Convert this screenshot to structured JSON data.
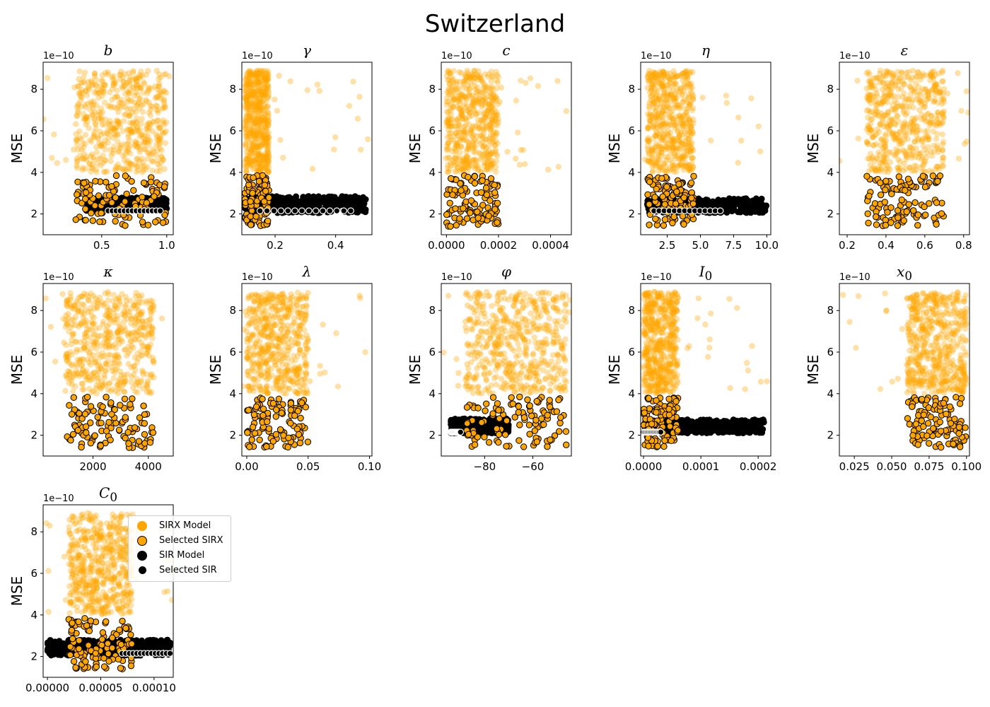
{
  "title": "Switzerland",
  "colors": {
    "sirx": "#FFA500",
    "sir": "#000000",
    "edge": "#000000",
    "sel_sir_edge": "#ffffff"
  },
  "legend": [
    {
      "label": "SIRX Model",
      "kind": "sirx"
    },
    {
      "label": "Selected SIRX",
      "kind": "sel_sirx"
    },
    {
      "label": "SIR Model",
      "kind": "sir"
    },
    {
      "label": "Selected SIR",
      "kind": "sel_sir"
    }
  ],
  "chart_data": [
    {
      "type": "scatter",
      "param": "b",
      "title_html": "<i>b</i>",
      "xlim": [
        0.05,
        1.05
      ],
      "xticks": [
        0.5,
        1.0
      ],
      "xtick_labels": [
        "0.5",
        "1.0"
      ],
      "sirx_x": [
        0.3,
        1.0
      ],
      "sir_x": [
        0.38,
        1.0
      ],
      "sir_y": [
        2.15,
        2.8
      ],
      "sel_sir_x": [
        0.55,
        0.95
      ],
      "ylabel": "MSE"
    },
    {
      "type": "scatter",
      "param": "gamma",
      "title_html": "<i>γ</i>",
      "xlim": [
        0.09,
        0.52
      ],
      "xticks": [
        0.2,
        0.4
      ],
      "xtick_labels": [
        "0.2",
        "0.4"
      ],
      "sirx_x": [
        0.1,
        0.18
      ],
      "sir_x": [
        0.1,
        0.5
      ],
      "sir_y": [
        2.05,
        2.85
      ],
      "sel_sir_x": [
        0.15,
        0.45
      ],
      "ylabel": "MSE"
    },
    {
      "type": "scatter",
      "param": "c",
      "title_html": "<i>c</i>",
      "xlim": [
        -2e-05,
        0.00048
      ],
      "xticks": [
        0.0,
        0.0002,
        0.0004
      ],
      "xtick_labels": [
        "0.0000",
        "0.0002",
        "0.0004"
      ],
      "sirx_x": [
        0.0,
        0.0002
      ],
      "sir_x": null,
      "sir_y": null,
      "sel_sir_x": null,
      "ylabel": "MSE"
    },
    {
      "type": "scatter",
      "param": "eta",
      "title_html": "<i>η</i>",
      "xlim": [
        0.5,
        10.3
      ],
      "xticks": [
        2.5,
        5.0,
        7.5,
        10.0
      ],
      "xtick_labels": [
        "2.5",
        "5.0",
        "7.5",
        "10.0"
      ],
      "sirx_x": [
        1.0,
        4.5
      ],
      "sir_x": [
        1.0,
        10.0
      ],
      "sir_y": [
        2.05,
        2.75
      ],
      "sel_sir_x": [
        1.5,
        6.5
      ],
      "ylabel": "MSE"
    },
    {
      "type": "scatter",
      "param": "epsilon",
      "title_html": "<i>ε</i>",
      "xlim": [
        0.16,
        0.83
      ],
      "xticks": [
        0.2,
        0.4,
        0.6,
        0.8
      ],
      "xtick_labels": [
        "0.2",
        "0.4",
        "0.6",
        "0.8"
      ],
      "sirx_x": [
        0.3,
        0.7
      ],
      "sir_x": null,
      "sir_y": null,
      "sel_sir_x": null,
      "ylabel": "MSE"
    },
    {
      "type": "scatter",
      "param": "kappa",
      "title_html": "<i>κ</i>",
      "xlim": [
        200,
        4900
      ],
      "xticks": [
        2000,
        4000
      ],
      "xtick_labels": [
        "2000",
        "4000"
      ],
      "sirx_x": [
        1000,
        4200
      ],
      "sir_x": null,
      "sir_y": null,
      "sel_sir_x": null,
      "ylabel": "MSE"
    },
    {
      "type": "scatter",
      "param": "lambda",
      "title_html": "<i>λ</i>",
      "xlim": [
        -0.004,
        0.102
      ],
      "xticks": [
        0.0,
        0.05,
        0.1
      ],
      "xtick_labels": [
        "0.00",
        "0.05",
        "0.10"
      ],
      "sirx_x": [
        0.0,
        0.05
      ],
      "sir_x": null,
      "sir_y": null,
      "sel_sir_x": null,
      "ylabel": "MSE"
    },
    {
      "type": "scatter",
      "param": "phi",
      "title_html": "<i>φ</i>",
      "xlim": [
        -98,
        -44
      ],
      "xticks": [
        -80,
        -60
      ],
      "xtick_labels": [
        "−80",
        "−60"
      ],
      "sirx_x": [
        -88,
        -46
      ],
      "sir_x": [
        -94,
        -70
      ],
      "sir_y": [
        2.1,
        2.8
      ],
      "sel_sir_x": [
        -94,
        -90
      ],
      "ylabel": "MSE"
    },
    {
      "type": "scatter",
      "param": "I0",
      "title_html": "<i>I</i><sub>0</sub>",
      "xlim": [
        -5e-06,
        0.000222
      ],
      "xticks": [
        0.0,
        0.0001,
        0.0002
      ],
      "xtick_labels": [
        "0.0000",
        "0.0001",
        "0.0002"
      ],
      "sirx_x": [
        0.0,
        6e-05
      ],
      "sir_x": [
        0.0,
        0.00021
      ],
      "sir_y": [
        2.1,
        2.75
      ],
      "sel_sir_x": [
        0.0,
        3e-05
      ],
      "ylabel": "MSE"
    },
    {
      "type": "scatter",
      "param": "x0",
      "title_html": "<i>x</i><sub>0</sub>",
      "xlim": [
        0.015,
        0.102
      ],
      "xticks": [
        0.025,
        0.05,
        0.075,
        0.1
      ],
      "xtick_labels": [
        "0.025",
        "0.050",
        "0.075",
        "0.100"
      ],
      "sirx_x": [
        0.06,
        0.1
      ],
      "sir_x": null,
      "sir_y": null,
      "sel_sir_x": null,
      "ylabel": "MSE"
    },
    {
      "type": "scatter",
      "param": "C0",
      "title_html": "<i>C</i><sub>0</sub>",
      "xlim": [
        -4e-06,
        0.000118
      ],
      "xticks": [
        0.0,
        5e-05,
        0.0001
      ],
      "xtick_labels": [
        "0.00000",
        "0.00005",
        "0.00010"
      ],
      "sirx_x": [
        2e-05,
        8e-05
      ],
      "sir_x": [
        0.0,
        0.000115
      ],
      "sir_y": [
        2.05,
        2.8
      ],
      "sel_sir_x": [
        7e-05,
        0.000115
      ],
      "ylabel": "MSE"
    }
  ],
  "common_axis": {
    "ylim": [
      1.0,
      9.3
    ],
    "yticks": [
      2,
      4,
      6,
      8
    ],
    "ytick_labels": [
      "2",
      "4",
      "6",
      "8"
    ],
    "offset_label": "1e−10",
    "sirx_y": [
      4.0,
      8.9
    ],
    "sel_sirx_y": [
      1.4,
      3.85
    ]
  }
}
